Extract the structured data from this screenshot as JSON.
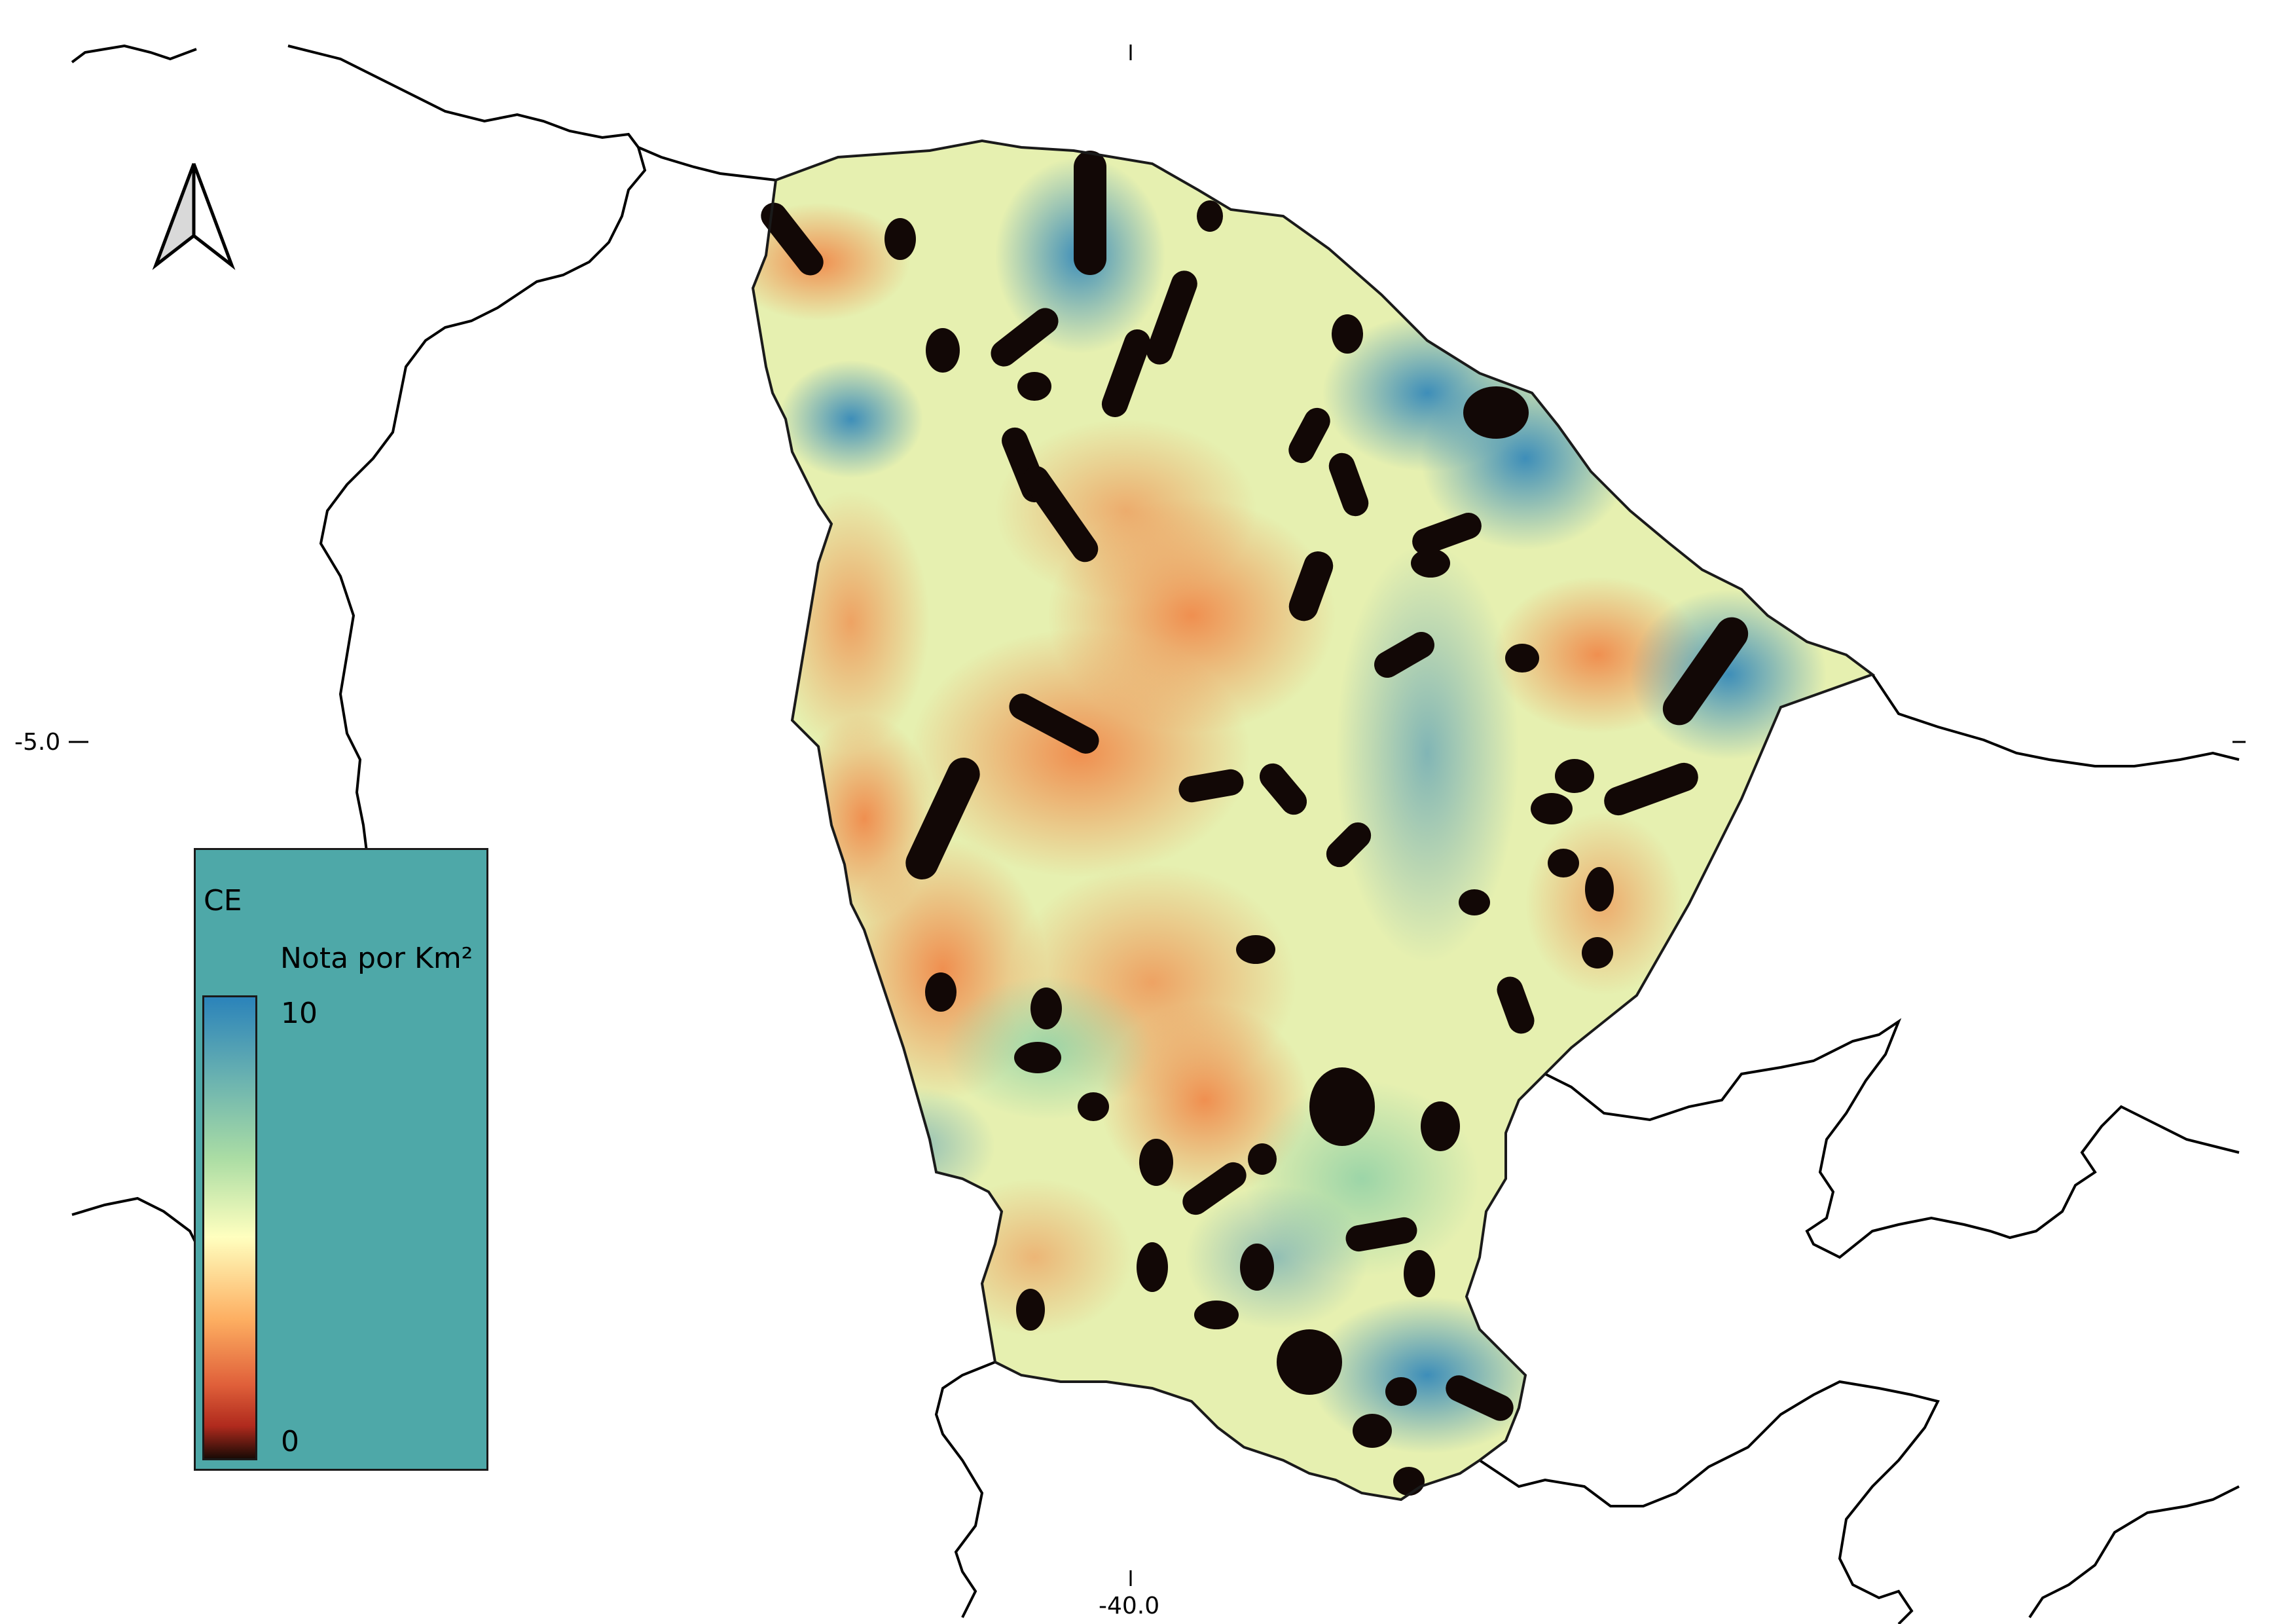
{
  "map": {
    "region": "CE",
    "legend": {
      "title": "CE",
      "subtitle": "Nota por Km²",
      "max_label": "10",
      "min_label": "0",
      "background_color": "#4ea8a8",
      "color_ramp": [
        "#2b83ba",
        "#6bb3b0",
        "#abdda4",
        "#ffffbf",
        "#fdae61",
        "#e0603a",
        "#b02a1d",
        "#1a0a05"
      ]
    },
    "axes": {
      "x_tick_label": "-40.0",
      "y_tick_label": "-5.0"
    },
    "north_arrow_icon": "north-arrow-icon",
    "colors": {
      "high": "#2b83ba",
      "mid": "#ffffbf",
      "low": "#f08a4b",
      "cluster": "#120806",
      "boundary": "#000000"
    }
  }
}
